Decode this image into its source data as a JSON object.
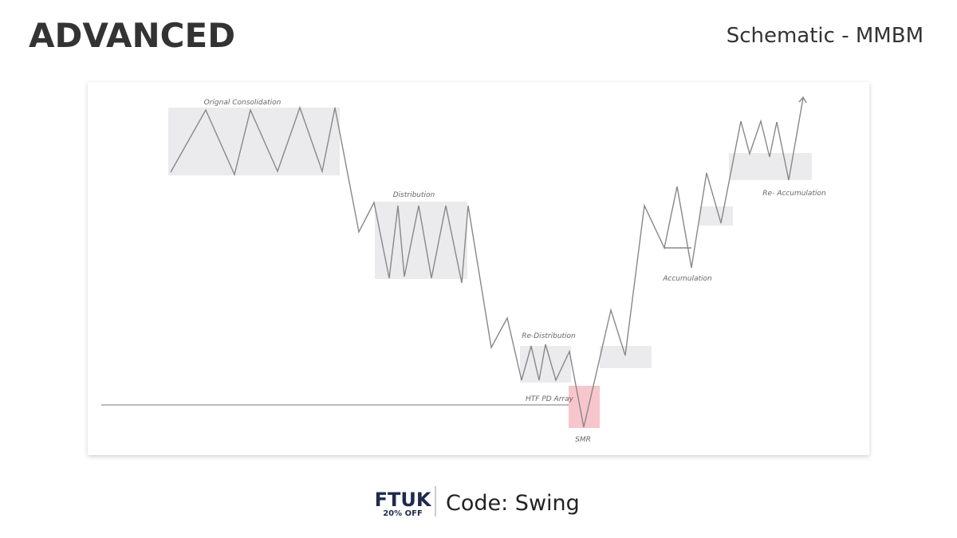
{
  "header": {
    "title": "ADVANCED",
    "subtitle": "Schematic - MMBM"
  },
  "diagram": {
    "labels": [
      "Orignal Consolidation",
      "Distribution",
      "Re-Distribution",
      "HTF PD Array",
      "SMR",
      "Accumulation",
      "Re- Accumulation"
    ]
  },
  "footer": {
    "brand": "FTUK",
    "offer": "20% OFF",
    "code": "Code: Swing"
  }
}
